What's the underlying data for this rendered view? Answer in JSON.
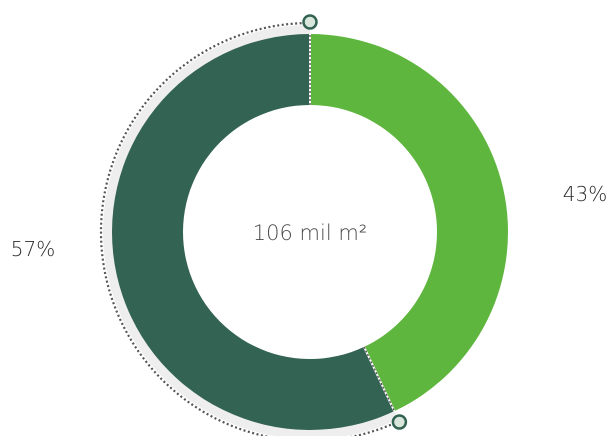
{
  "chart_data": {
    "type": "pie",
    "center_text": "106 mil m²",
    "slices": [
      {
        "value": 43,
        "label": "43%",
        "color": "#5fb63e"
      },
      {
        "value": 57,
        "label": "57%",
        "color": "#336352"
      }
    ],
    "outline_color": "#555555",
    "marker_color": "#336352",
    "marker_fill": "#d9e6dc"
  }
}
